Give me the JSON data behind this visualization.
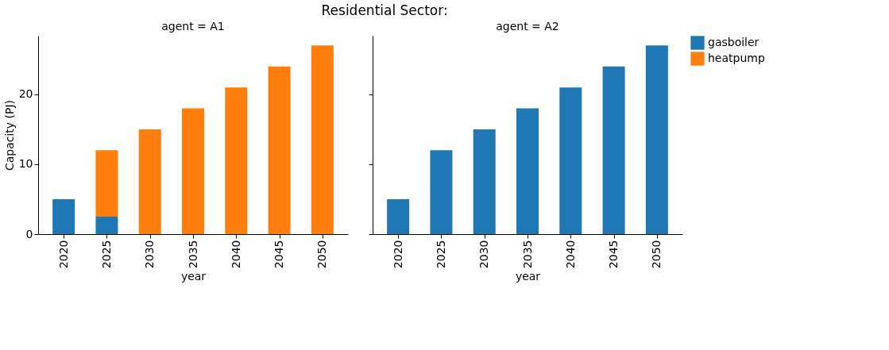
{
  "chart_data": [
    {
      "type": "bar",
      "title": "agent = A1",
      "annotations": [
        "Residential Sector:"
      ],
      "xlabel": "year",
      "ylabel": "Capacity (PJ)",
      "categories": [
        "2020",
        "2025",
        "2030",
        "2035",
        "2040",
        "2045",
        "2050"
      ],
      "stacked": true,
      "ylim": [
        0,
        28.4
      ],
      "yticks": [
        0,
        10,
        20
      ],
      "grid": false,
      "legend": "right",
      "series": [
        {
          "name": "gasboiler",
          "color": "#1f77b4",
          "values": [
            5,
            2.5,
            null,
            null,
            null,
            null,
            null
          ]
        },
        {
          "name": "heatpump",
          "color": "#ff7f0e",
          "values": [
            null,
            9.5,
            15,
            18,
            21,
            24,
            27
          ]
        }
      ]
    },
    {
      "type": "bar",
      "title": "agent = A2",
      "xlabel": "year",
      "categories": [
        "2020",
        "2025",
        "2030",
        "2035",
        "2040",
        "2045",
        "2050"
      ],
      "stacked": true,
      "ylim": [
        0,
        28.4
      ],
      "yticks": [
        0,
        10,
        20
      ],
      "grid": false,
      "legend": "right",
      "tick_labels": "x",
      "series": [
        {
          "name": "gasboiler",
          "color": "#1f77b4",
          "values": [
            5,
            12,
            15,
            18,
            21,
            24,
            27
          ]
        },
        {
          "name": "heatpump",
          "color": "#ff7f0e",
          "values": [
            null,
            null,
            null,
            null,
            null,
            null,
            null
          ]
        }
      ]
    }
  ]
}
